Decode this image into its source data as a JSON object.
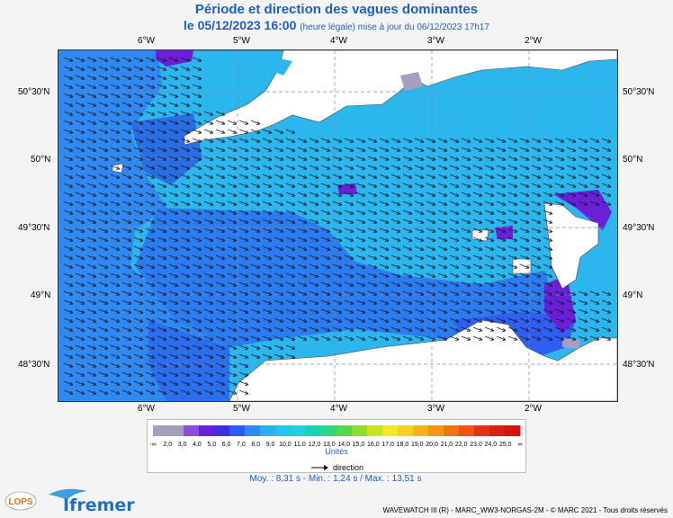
{
  "header": {
    "title": "Période et direction des vagues dominantes",
    "date_label": "le 05/12/2023 16:00",
    "update_note": "(heure légale) mise à jour du 06/12/2023 17h17"
  },
  "axes": {
    "lon_ticks": [
      "6°W",
      "5°W",
      "4°W",
      "3°W",
      "2°W"
    ],
    "lat_ticks": [
      "50°30'N",
      "50°N",
      "49°30'N",
      "49°N",
      "48°30'N"
    ]
  },
  "legend": {
    "labels": [
      "-∞",
      "2,0",
      "3,0",
      "4,0",
      "5,0",
      "6,0",
      "7,0",
      "8,0",
      "9,0",
      "10,0",
      "11,0",
      "12,0",
      "13,0",
      "14,0",
      "15,0",
      "16,0",
      "17,0",
      "18,0",
      "19,0",
      "20,0",
      "21,0",
      "22,0",
      "23,0",
      "24,0",
      "25,0",
      "∞"
    ],
    "colors": [
      "#a79ebd",
      "#a79ebd",
      "#8b4fd6",
      "#6a1fd9",
      "#3b30e0",
      "#2b5cf0",
      "#2f89f0",
      "#2eb0ee",
      "#25c5ee",
      "#1dd2dc",
      "#19d4b2",
      "#2ed684",
      "#5ad64c",
      "#8cdb2e",
      "#c8e41e",
      "#f1ea22",
      "#f7d21a",
      "#f6b418",
      "#f39616",
      "#ef7514",
      "#eb5414",
      "#e63012",
      "#e01e10",
      "#d81010"
    ],
    "unit": "Unités",
    "direction_label": "direction"
  },
  "stats": {
    "text": "Moy. : 8,31 s   -   Min. : 1,24 s / Max. : 13,51 s"
  },
  "footer": {
    "credit": "WAVEWATCH III (R) - MARC_WW3-NORGAS-2M - © MARC 2021 - Tous droits réservés",
    "logo_left": "LOPS",
    "logo_right": "Ifremer"
  }
}
